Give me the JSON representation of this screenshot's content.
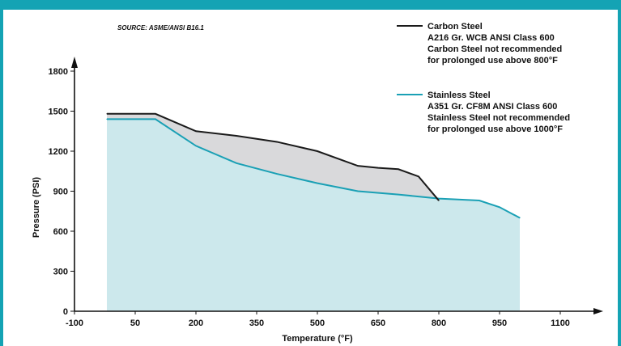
{
  "source_note": "SOURCE: ASME/ANSI B16.1",
  "chart_data": {
    "type": "area",
    "xlabel": "Temperature (°F)",
    "ylabel": "Pressure (PSI)",
    "xlim": [
      -100,
      1100
    ],
    "ylim": [
      0,
      1800
    ],
    "x_ticks": [
      "-100",
      "50",
      "200",
      "350",
      "500",
      "650",
      "800",
      "950",
      "1100"
    ],
    "x_tick_values": [
      -100,
      50,
      200,
      350,
      500,
      650,
      800,
      950,
      1100
    ],
    "y_ticks": [
      "0",
      "300",
      "600",
      "900",
      "1200",
      "1500",
      "1800"
    ],
    "y_tick_values": [
      0,
      300,
      600,
      900,
      1200,
      1500,
      1800
    ],
    "grid": false,
    "legend_position": "top-right",
    "series": [
      {
        "key": "carbon",
        "color": "#1a1a1a",
        "fill": "#d9d9db",
        "legend_lines": [
          "Carbon Steel",
          "A216 Gr. WCB ANSI Class 600",
          "Carbon Steel not recommended",
          "for prolonged use above 800°F"
        ],
        "points": [
          [
            -20,
            1480
          ],
          [
            100,
            1480
          ],
          [
            200,
            1350
          ],
          [
            300,
            1315
          ],
          [
            400,
            1270
          ],
          [
            500,
            1200
          ],
          [
            600,
            1090
          ],
          [
            650,
            1075
          ],
          [
            700,
            1065
          ],
          [
            750,
            1010
          ],
          [
            800,
            830
          ]
        ]
      },
      {
        "key": "stainless",
        "color": "#1aa0b5",
        "fill": "#cce8ec",
        "legend_lines": [
          "Stainless Steel",
          "A351 Gr. CF8M ANSI Class 600",
          "Stainless Steel not recommended",
          "for prolonged use above 1000°F"
        ],
        "points": [
          [
            -20,
            1440
          ],
          [
            100,
            1440
          ],
          [
            200,
            1240
          ],
          [
            300,
            1110
          ],
          [
            400,
            1030
          ],
          [
            500,
            960
          ],
          [
            600,
            900
          ],
          [
            700,
            875
          ],
          [
            800,
            845
          ],
          [
            900,
            830
          ],
          [
            950,
            780
          ],
          [
            1000,
            700
          ]
        ]
      }
    ]
  }
}
